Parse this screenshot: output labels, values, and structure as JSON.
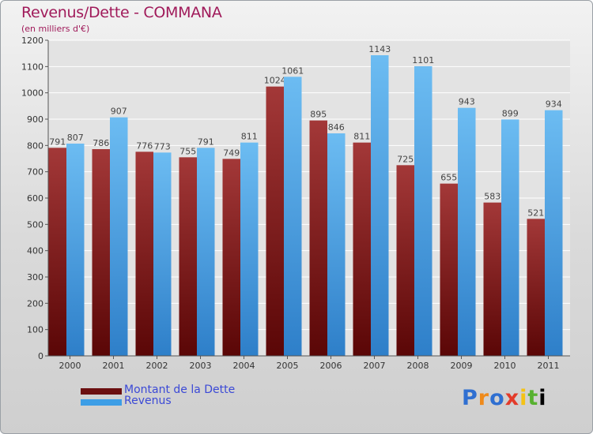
{
  "title": "Revenus/Dette - COMMANA",
  "subtitle": "(en milliers d'€)",
  "legend": {
    "items": [
      {
        "label": "Montant de la Dette",
        "color": "#6b0f10"
      },
      {
        "label": "Revenus",
        "color": "#3d9ee6"
      }
    ]
  },
  "logo": {
    "letters": [
      "P",
      "r",
      "o",
      "x",
      "i",
      "t",
      "i"
    ]
  },
  "colors": {
    "dette_top": "#a33838",
    "dette_bottom": "#5a0606",
    "revenus_top": "#6cbcf2",
    "revenus_bottom": "#2e7fc9",
    "grid": "#ffffff",
    "axis_text": "#333333",
    "label_text": "#444444"
  },
  "chart_data": {
    "type": "bar",
    "categories": [
      "2000",
      "2001",
      "2002",
      "2003",
      "2004",
      "2005",
      "2006",
      "2007",
      "2008",
      "2009",
      "2010",
      "2011"
    ],
    "series": [
      {
        "name": "Montant de la Dette",
        "values": [
          791,
          786,
          776,
          755,
          749,
          1024,
          895,
          811,
          725,
          655,
          583,
          521
        ]
      },
      {
        "name": "Revenus",
        "values": [
          807,
          907,
          773,
          791,
          811,
          1061,
          846,
          1143,
          1101,
          943,
          899,
          934
        ]
      }
    ],
    "ylim": [
      0,
      1200
    ],
    "yticks": [
      0,
      100,
      200,
      300,
      400,
      500,
      600,
      700,
      800,
      900,
      1000,
      1100,
      1200
    ],
    "grid": true,
    "legend_position": "bottom-left"
  }
}
